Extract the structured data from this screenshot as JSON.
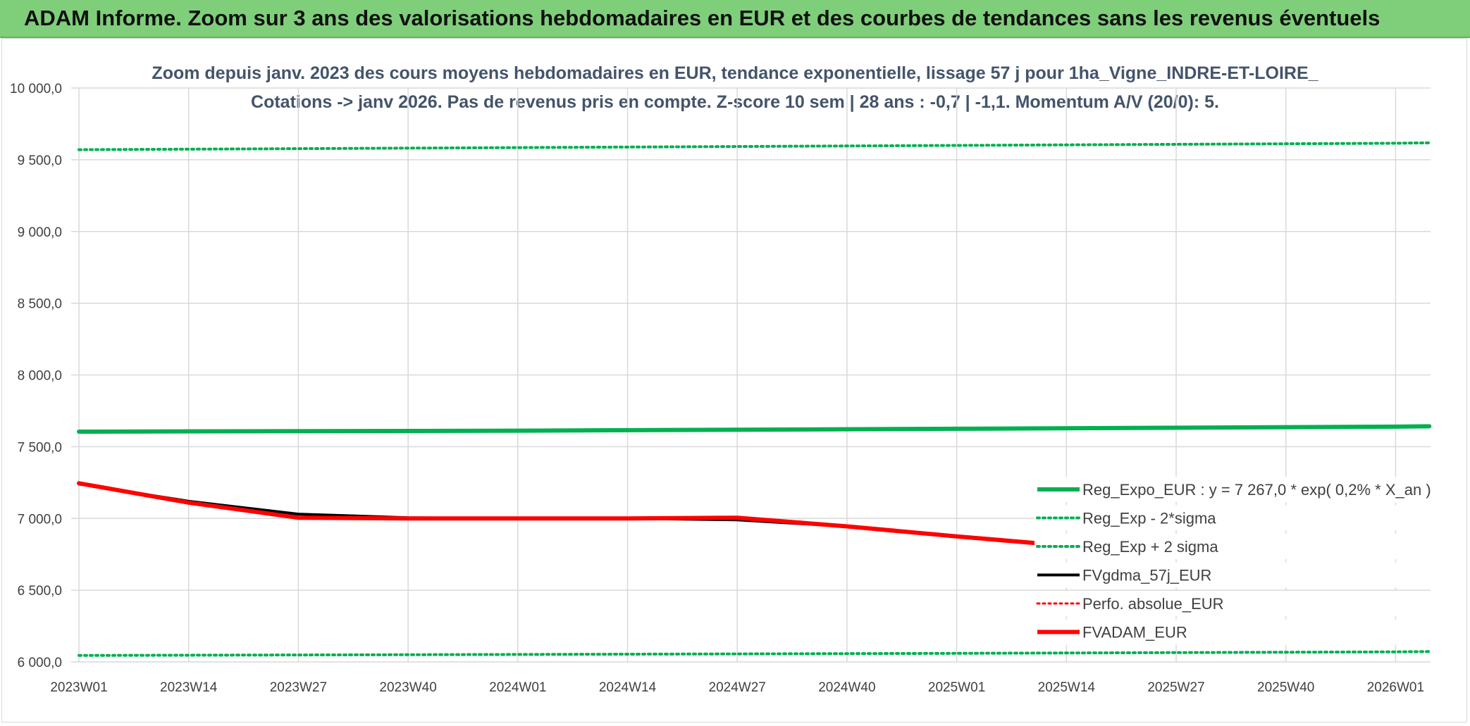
{
  "banner": {
    "title": "ADAM Informe. Zoom sur 3 ans des valorisations hebdomadaires en EUR et des courbes de tendances sans les revenus éventuels"
  },
  "chart_data": {
    "type": "line",
    "title": "Zoom depuis janv. 2023 des cours moyens hebdomadaires en EUR, tendance exponentielle, lissage 57 j pour 1ha_Vigne_INDRE-ET-LOIRE_",
    "subtitle": "Cotations -> janv 2026. Pas de revenus pris en compte. Z-score 10 sem | 28 ans : -0,7 | -1,1. Momentum A/V (20/0): 5.",
    "xlabel": "",
    "ylabel": "",
    "ylim": [
      6000,
      10000
    ],
    "y_ticks": [
      "6 000,0",
      "6 500,0",
      "7 000,0",
      "7 500,0",
      "8 000,0",
      "8 500,0",
      "9 000,0",
      "9 500,0",
      "10 000,0"
    ],
    "x_ticks": [
      "2023W01",
      "2023W14",
      "2023W27",
      "2023W40",
      "2024W01",
      "2024W14",
      "2024W27",
      "2024W40",
      "2025W01",
      "2025W14",
      "2025W27",
      "2025W40",
      "2026W01"
    ],
    "grid": true,
    "legend_position": "bottom-right",
    "series": [
      {
        "name": "Reg_Expo_EUR : y = 7 267,0 * exp( 0,2% *  X_an )",
        "color": "#00b050",
        "style": "solid",
        "width": 6,
        "points": [
          [
            "2023W01",
            7605
          ],
          [
            "2024W01",
            7612
          ],
          [
            "2025W01",
            7625
          ],
          [
            "2026W01",
            7640
          ],
          [
            "2026W05",
            7642
          ]
        ]
      },
      {
        "name": "Reg_Exp - 2*sigma",
        "color": "#00b050",
        "style": "dotted",
        "width": 4,
        "points": [
          [
            "2023W01",
            6045
          ],
          [
            "2024W01",
            6052
          ],
          [
            "2025W01",
            6060
          ],
          [
            "2026W01",
            6070
          ],
          [
            "2026W05",
            6072
          ]
        ]
      },
      {
        "name": "Reg_Exp + 2 sigma",
        "color": "#00b050",
        "style": "dotted",
        "width": 4,
        "points": [
          [
            "2023W01",
            9570
          ],
          [
            "2024W01",
            9585
          ],
          [
            "2025W01",
            9600
          ],
          [
            "2026W01",
            9615
          ],
          [
            "2026W05",
            9618
          ]
        ]
      },
      {
        "name": "FVgdma_57j_EUR",
        "color": "#000000",
        "style": "solid",
        "width": 4,
        "points": [
          [
            "2023W01",
            7240
          ],
          [
            "2023W14",
            7120
          ],
          [
            "2023W27",
            7030
          ],
          [
            "2023W40",
            7005
          ],
          [
            "2024W01",
            7000
          ],
          [
            "2024W14",
            7000
          ],
          [
            "2024W27",
            6990
          ],
          [
            "2024W40",
            6945
          ],
          [
            "2025W01",
            6875
          ],
          [
            "2025W14",
            6815
          ],
          [
            "2025W27",
            6755
          ],
          [
            "2025W40",
            6750
          ],
          [
            "2026W01",
            6745
          ],
          [
            "2026W05",
            6745
          ]
        ]
      },
      {
        "name": "Perfo. absolue_EUR",
        "color": "#ff0000",
        "style": "dotted",
        "width": 3,
        "points": []
      },
      {
        "name": "FVADAM_EUR",
        "color": "#ff0000",
        "style": "solid",
        "width": 6,
        "points": [
          [
            "2023W01",
            7245
          ],
          [
            "2023W14",
            7110
          ],
          [
            "2023W27",
            7005
          ],
          [
            "2023W40",
            7000
          ],
          [
            "2024W01",
            7000
          ],
          [
            "2024W14",
            7000
          ],
          [
            "2024W27",
            7005
          ],
          [
            "2024W40",
            6945
          ],
          [
            "2025W01",
            6875
          ],
          [
            "2025W14",
            6810
          ],
          [
            "2025W27",
            6760
          ],
          [
            "2025W40",
            6750
          ],
          [
            "2026W01",
            6745
          ],
          [
            "2026W05",
            6745
          ]
        ]
      }
    ]
  }
}
